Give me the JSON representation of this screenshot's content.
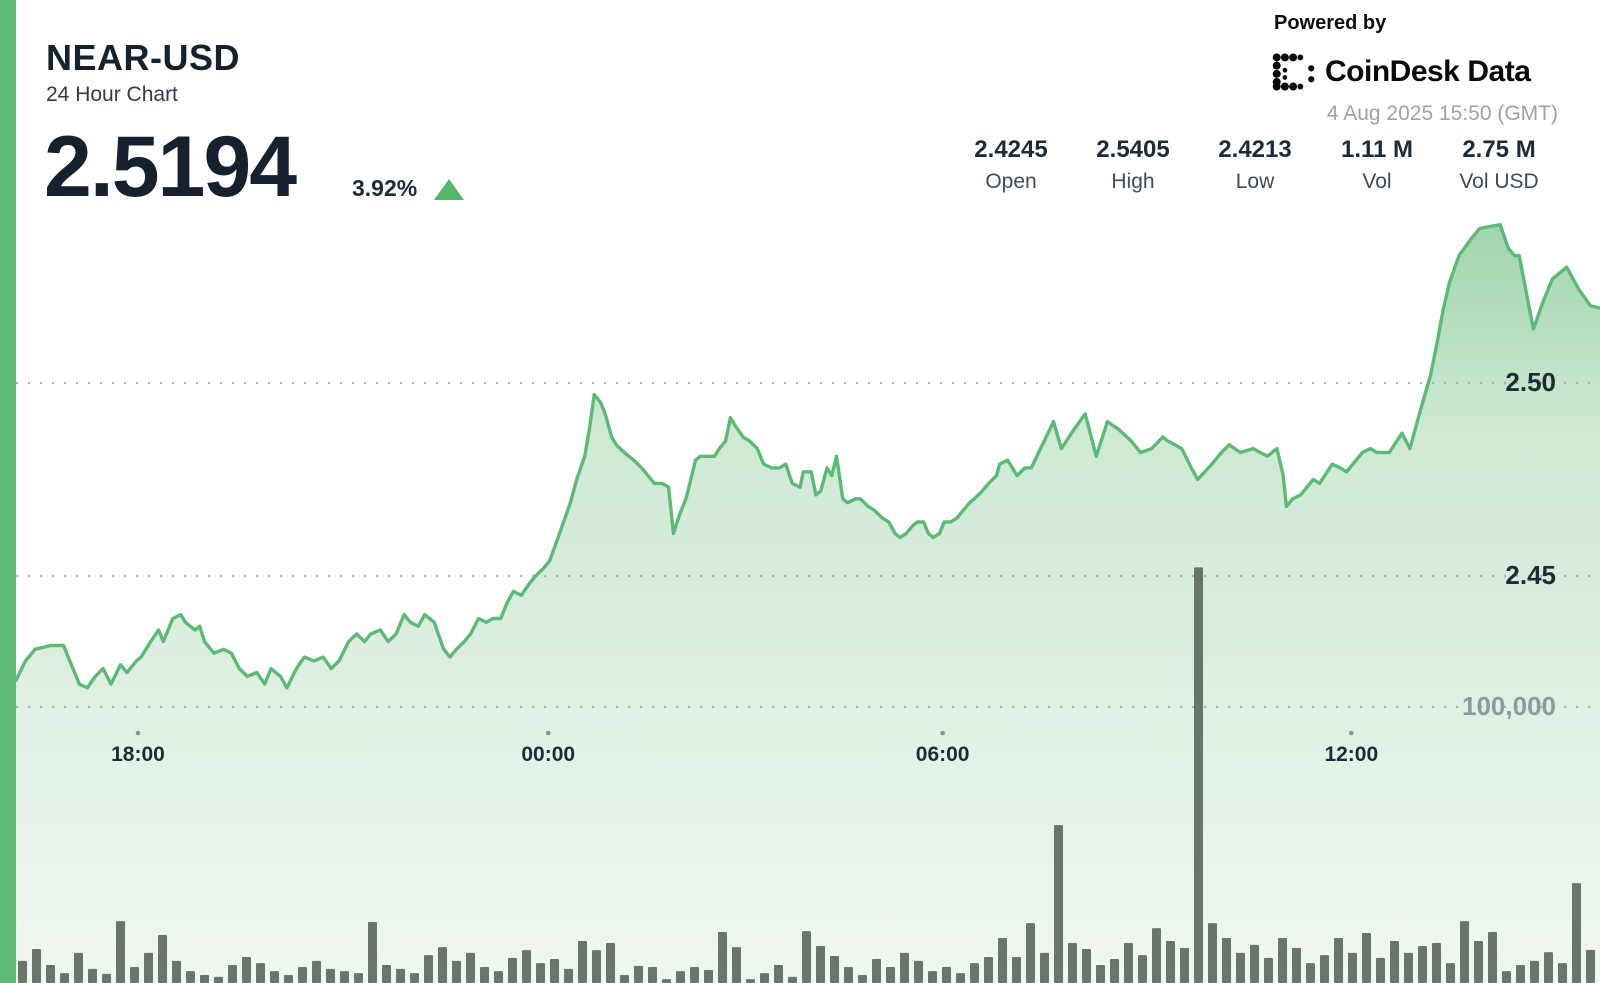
{
  "header": {
    "symbol": "NEAR-USD",
    "subtitle": "24 Hour Chart",
    "price": "2.5194",
    "change_percent": "3.92%",
    "change_direction": "up"
  },
  "branding": {
    "powered_by": "Powered by",
    "logo_word_1": "CoinDesk",
    "logo_word_2": "Data",
    "timestamp": "4 Aug 2025 15:50 (GMT)"
  },
  "stats": [
    {
      "value": "2.4245",
      "label": "Open"
    },
    {
      "value": "2.5405",
      "label": "High"
    },
    {
      "value": "2.4213",
      "label": "Low"
    },
    {
      "value": "1.11 M",
      "label": "Vol"
    },
    {
      "value": "2.75 M",
      "label": "Vol USD"
    }
  ],
  "colors": {
    "accent_green": "#5fbc78",
    "line_green": "#5cba76",
    "fill_top": "#8ecd9c",
    "fill_mid": "#c6e5cd",
    "fill_low": "#ddeee0",
    "fill_bottom": "#eff6f0",
    "volume_bar": "#57635a",
    "gridline_gray": "#a3aab0",
    "tick_dot_gray": "#8a9298",
    "text_dark": "#16212f",
    "text_gray": "#9aa3ab",
    "volume_label_gray": "#8e99a1",
    "triangle_green": "#54b868"
  },
  "chart_data": {
    "type": "area",
    "title": "NEAR-USD 24 Hour Chart",
    "legend": "none",
    "grid": "dotted-horizontal",
    "x_axis": {
      "span_hours": 24,
      "ticks": [
        {
          "label": "18:00",
          "f": 0.077
        },
        {
          "label": "00:00",
          "f": 0.336
        },
        {
          "label": "06:00",
          "f": 0.585
        },
        {
          "label": "12:00",
          "f": 0.843
        }
      ]
    },
    "price_axis": {
      "side": "right",
      "gridlines": [
        {
          "value": 2.5,
          "label": "2.50"
        },
        {
          "value": 2.45,
          "label": "2.45"
        }
      ]
    },
    "volume_axis": {
      "side": "right",
      "gridline_value": 100000,
      "gridline_label": "100,000"
    },
    "summary": {
      "open": 2.4245,
      "high": 2.5405,
      "low": 2.4213,
      "last": 2.5194,
      "change_pct": 3.92,
      "volume": "1.11 M",
      "volume_usd": "2.75 M"
    },
    "price_points": [
      [
        0.0,
        2.423
      ],
      [
        0.006,
        2.428
      ],
      [
        0.012,
        2.431
      ],
      [
        0.022,
        2.432
      ],
      [
        0.03,
        2.432
      ],
      [
        0.035,
        2.427
      ],
      [
        0.04,
        2.422
      ],
      [
        0.045,
        2.421
      ],
      [
        0.05,
        2.424
      ],
      [
        0.055,
        2.426
      ],
      [
        0.06,
        2.422
      ],
      [
        0.066,
        2.427
      ],
      [
        0.07,
        2.425
      ],
      [
        0.076,
        2.428
      ],
      [
        0.079,
        2.429
      ],
      [
        0.085,
        2.433
      ],
      [
        0.09,
        2.436
      ],
      [
        0.093,
        2.433
      ],
      [
        0.099,
        2.439
      ],
      [
        0.104,
        2.44
      ],
      [
        0.107,
        2.438
      ],
      [
        0.113,
        2.436
      ],
      [
        0.116,
        2.437
      ],
      [
        0.119,
        2.433
      ],
      [
        0.125,
        2.43
      ],
      [
        0.131,
        2.431
      ],
      [
        0.136,
        2.43
      ],
      [
        0.141,
        2.426
      ],
      [
        0.146,
        2.424
      ],
      [
        0.152,
        2.425
      ],
      [
        0.157,
        2.422
      ],
      [
        0.161,
        2.426
      ],
      [
        0.167,
        2.424
      ],
      [
        0.171,
        2.421
      ],
      [
        0.177,
        2.426
      ],
      [
        0.182,
        2.429
      ],
      [
        0.188,
        2.428
      ],
      [
        0.194,
        2.429
      ],
      [
        0.199,
        2.426
      ],
      [
        0.204,
        2.428
      ],
      [
        0.21,
        2.433
      ],
      [
        0.215,
        2.435
      ],
      [
        0.22,
        2.433
      ],
      [
        0.224,
        2.435
      ],
      [
        0.23,
        2.436
      ],
      [
        0.235,
        2.433
      ],
      [
        0.24,
        2.435
      ],
      [
        0.245,
        2.44
      ],
      [
        0.249,
        2.438
      ],
      [
        0.254,
        2.437
      ],
      [
        0.258,
        2.44
      ],
      [
        0.264,
        2.438
      ],
      [
        0.27,
        2.431
      ],
      [
        0.274,
        2.429
      ],
      [
        0.278,
        2.431
      ],
      [
        0.283,
        2.433
      ],
      [
        0.287,
        2.435
      ],
      [
        0.292,
        2.439
      ],
      [
        0.297,
        2.438
      ],
      [
        0.301,
        2.439
      ],
      [
        0.306,
        2.439
      ],
      [
        0.31,
        2.443
      ],
      [
        0.314,
        2.446
      ],
      [
        0.319,
        2.445
      ],
      [
        0.324,
        2.448
      ],
      [
        0.328,
        2.45
      ],
      [
        0.333,
        2.452
      ],
      [
        0.337,
        2.454
      ],
      [
        0.344,
        2.462
      ],
      [
        0.35,
        2.469
      ],
      [
        0.354,
        2.475
      ],
      [
        0.359,
        2.481
      ],
      [
        0.362,
        2.488
      ],
      [
        0.365,
        2.497
      ],
      [
        0.369,
        2.495
      ],
      [
        0.372,
        2.492
      ],
      [
        0.376,
        2.486
      ],
      [
        0.379,
        2.484
      ],
      [
        0.384,
        2.482
      ],
      [
        0.39,
        2.48
      ],
      [
        0.395,
        2.478
      ],
      [
        0.399,
        2.476
      ],
      [
        0.403,
        2.474
      ],
      [
        0.408,
        2.474
      ],
      [
        0.412,
        2.473
      ],
      [
        0.415,
        2.461
      ],
      [
        0.419,
        2.466
      ],
      [
        0.423,
        2.47
      ],
      [
        0.426,
        2.475
      ],
      [
        0.429,
        2.48
      ],
      [
        0.432,
        2.481
      ],
      [
        0.436,
        2.481
      ],
      [
        0.441,
        2.481
      ],
      [
        0.444,
        2.483
      ],
      [
        0.448,
        2.485
      ],
      [
        0.451,
        2.491
      ],
      [
        0.454,
        2.489
      ],
      [
        0.459,
        2.486
      ],
      [
        0.463,
        2.485
      ],
      [
        0.468,
        2.483
      ],
      [
        0.472,
        2.479
      ],
      [
        0.477,
        2.478
      ],
      [
        0.482,
        2.478
      ],
      [
        0.486,
        2.479
      ],
      [
        0.49,
        2.474
      ],
      [
        0.495,
        2.473
      ],
      [
        0.497,
        2.477
      ],
      [
        0.502,
        2.477
      ],
      [
        0.505,
        2.471
      ],
      [
        0.508,
        2.472
      ],
      [
        0.512,
        2.478
      ],
      [
        0.515,
        2.476
      ],
      [
        0.518,
        2.481
      ],
      [
        0.522,
        2.47
      ],
      [
        0.525,
        2.469
      ],
      [
        0.53,
        2.47
      ],
      [
        0.533,
        2.47
      ],
      [
        0.538,
        2.468
      ],
      [
        0.542,
        2.467
      ],
      [
        0.547,
        2.465
      ],
      [
        0.551,
        2.464
      ],
      [
        0.555,
        2.461
      ],
      [
        0.558,
        2.46
      ],
      [
        0.562,
        2.461
      ],
      [
        0.566,
        2.463
      ],
      [
        0.569,
        2.464
      ],
      [
        0.573,
        2.464
      ],
      [
        0.576,
        2.461
      ],
      [
        0.579,
        2.46
      ],
      [
        0.583,
        2.461
      ],
      [
        0.586,
        2.464
      ],
      [
        0.59,
        2.464
      ],
      [
        0.594,
        2.465
      ],
      [
        0.598,
        2.467
      ],
      [
        0.602,
        2.469
      ],
      [
        0.605,
        2.47
      ],
      [
        0.61,
        2.472
      ],
      [
        0.614,
        2.474
      ],
      [
        0.619,
        2.476
      ],
      [
        0.621,
        2.479
      ],
      [
        0.626,
        2.48
      ],
      [
        0.632,
        2.476
      ],
      [
        0.637,
        2.478
      ],
      [
        0.641,
        2.478
      ],
      [
        0.648,
        2.484
      ],
      [
        0.655,
        2.49
      ],
      [
        0.66,
        2.483
      ],
      [
        0.668,
        2.488
      ],
      [
        0.675,
        2.492
      ],
      [
        0.682,
        2.481
      ],
      [
        0.689,
        2.49
      ],
      [
        0.696,
        2.488
      ],
      [
        0.704,
        2.485
      ],
      [
        0.71,
        2.482
      ],
      [
        0.717,
        2.483
      ],
      [
        0.724,
        2.486
      ],
      [
        0.727,
        2.485
      ],
      [
        0.736,
        2.483
      ],
      [
        0.742,
        2.478
      ],
      [
        0.746,
        2.475
      ],
      [
        0.755,
        2.479
      ],
      [
        0.761,
        2.482
      ],
      [
        0.766,
        2.484
      ],
      [
        0.773,
        2.482
      ],
      [
        0.781,
        2.483
      ],
      [
        0.79,
        2.481
      ],
      [
        0.796,
        2.483
      ],
      [
        0.8,
        2.476
      ],
      [
        0.802,
        2.468
      ],
      [
        0.806,
        2.47
      ],
      [
        0.811,
        2.471
      ],
      [
        0.819,
        2.475
      ],
      [
        0.823,
        2.474
      ],
      [
        0.831,
        2.479
      ],
      [
        0.836,
        2.478
      ],
      [
        0.84,
        2.477
      ],
      [
        0.85,
        2.482
      ],
      [
        0.855,
        2.483
      ],
      [
        0.859,
        2.482
      ],
      [
        0.867,
        2.482
      ],
      [
        0.875,
        2.487
      ],
      [
        0.88,
        2.483
      ],
      [
        0.886,
        2.492
      ],
      [
        0.893,
        2.502
      ],
      [
        0.897,
        2.51
      ],
      [
        0.901,
        2.519
      ],
      [
        0.905,
        2.526
      ],
      [
        0.911,
        2.533
      ],
      [
        0.918,
        2.537
      ],
      [
        0.924,
        2.54
      ],
      [
        0.93,
        2.5405
      ],
      [
        0.937,
        2.541
      ],
      [
        0.942,
        2.535
      ],
      [
        0.946,
        2.533
      ],
      [
        0.949,
        2.533
      ],
      [
        0.956,
        2.518
      ],
      [
        0.958,
        2.514
      ],
      [
        0.964,
        2.521
      ],
      [
        0.97,
        2.527
      ],
      [
        0.979,
        2.53
      ],
      [
        0.987,
        2.524
      ],
      [
        0.994,
        2.52
      ],
      [
        1.0,
        2.5194
      ]
    ],
    "volume_bars": [
      8000,
      12300,
      6500,
      3600,
      10900,
      5100,
      3300,
      22400,
      5800,
      10900,
      17400,
      8000,
      4300,
      2900,
      2200,
      6500,
      9400,
      7200,
      4300,
      2900,
      5800,
      8000,
      5100,
      4300,
      3600,
      22100,
      6500,
      5100,
      3600,
      10100,
      13000,
      8000,
      10900,
      5800,
      4300,
      9100,
      11900,
      7200,
      8700,
      5100,
      15200,
      11900,
      14500,
      2900,
      6200,
      5800,
      1400,
      4300,
      5800,
      4700,
      18500,
      13000,
      1400,
      3600,
      6500,
      2200,
      18800,
      13400,
      9800,
      5800,
      2900,
      8700,
      5800,
      10900,
      8000,
      4300,
      5800,
      3600,
      7200,
      9400,
      16300,
      9400,
      21700,
      10900,
      57200,
      14500,
      12300,
      6500,
      8700,
      14500,
      10100,
      19900,
      15200,
      12700,
      150600,
      21700,
      16300,
      10900,
      13800,
      9100,
      16300,
      12700,
      7200,
      10100,
      16300,
      10900,
      18100,
      9100,
      15200,
      10900,
      13400,
      14500,
      7200,
      22400,
      15200,
      18500,
      4300,
      6500,
      8000,
      11200,
      7200,
      36200,
      12000
    ]
  }
}
